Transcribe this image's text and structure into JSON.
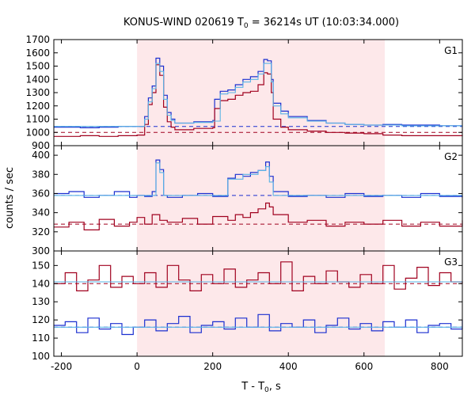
{
  "chart_data": {
    "type": "line",
    "title_main": "KONUS-WIND 020619 T",
    "title_sub": "0",
    "title_rest": " = 36214s UT (10:03:34.000)",
    "ylabel": "counts / sec",
    "xlabel_main": "T - T",
    "xlabel_sub": "0",
    "xlabel_rest": ", s",
    "xlim": [
      -220,
      860
    ],
    "xticks": [
      -200,
      0,
      200,
      400,
      600,
      800
    ],
    "shaded_interval": [
      0,
      655
    ],
    "colors": {
      "high": "#a0001e",
      "low": "#1b2fd0",
      "fit": "#5ab4e6",
      "shade": "#fde8ea"
    },
    "panels": [
      {
        "name": "G1",
        "ylim": [
          900,
          1700
        ],
        "yticks": [
          900,
          1000,
          1100,
          1200,
          1300,
          1400,
          1500,
          1600,
          1700
        ],
        "background_high": 1000,
        "background_low": 1045,
        "series": [
          {
            "role": "low",
            "x": [
              -220,
              -150,
              -100,
              -50,
              0,
              20,
              30,
              40,
              50,
              60,
              70,
              80,
              90,
              100,
              150,
              200,
              205,
              220,
              240,
              260,
              280,
              300,
              320,
              335,
              345,
              355,
              360,
              380,
              400,
              450,
              500,
              550,
              600,
              650,
              700,
              800,
              860
            ],
            "y": [
              1040,
              1035,
              1040,
              1045,
              1045,
              1120,
              1260,
              1350,
              1560,
              1500,
              1280,
              1150,
              1100,
              1070,
              1080,
              1090,
              1250,
              1310,
              1320,
              1360,
              1400,
              1420,
              1460,
              1550,
              1540,
              1400,
              1220,
              1160,
              1120,
              1090,
              1070,
              1060,
              1055,
              1060,
              1055,
              1050,
              1050
            ]
          },
          {
            "role": "high",
            "x": [
              -220,
              -150,
              -100,
              -50,
              0,
              20,
              30,
              40,
              50,
              60,
              70,
              80,
              90,
              100,
              150,
              200,
              205,
              220,
              240,
              260,
              280,
              300,
              320,
              335,
              345,
              355,
              360,
              380,
              400,
              450,
              500,
              550,
              600,
              650,
              700,
              800,
              860
            ],
            "y": [
              970,
              975,
              970,
              975,
              980,
              1060,
              1210,
              1300,
              1510,
              1430,
              1190,
              1080,
              1040,
              1020,
              1030,
              1035,
              1180,
              1240,
              1250,
              1280,
              1300,
              1310,
              1360,
              1450,
              1440,
              1300,
              1100,
              1040,
              1020,
              1010,
              1000,
              995,
              990,
              980,
              975,
              975,
              980
            ]
          },
          {
            "role": "fit",
            "x": [
              -220,
              0,
              20,
              30,
              40,
              50,
              60,
              70,
              80,
              90,
              100,
              150,
              200,
              220,
              240,
              260,
              280,
              300,
              320,
              335,
              345,
              355,
              360,
              380,
              400,
              450,
              500,
              550,
              600,
              650,
              700,
              800,
              860
            ],
            "y": [
              1045,
              1045,
              1100,
              1230,
              1330,
              1520,
              1460,
              1250,
              1130,
              1090,
              1070,
              1075,
              1085,
              1290,
              1300,
              1340,
              1380,
              1400,
              1440,
              1520,
              1520,
              1380,
              1200,
              1140,
              1110,
              1085,
              1070,
              1060,
              1055,
              1055,
              1050,
              1050,
              1050
            ]
          }
        ]
      },
      {
        "name": "G2",
        "ylim": [
          300,
          410
        ],
        "yticks": [
          300,
          320,
          340,
          360,
          380,
          400
        ],
        "background_high": 328,
        "background_low": 358,
        "series": [
          {
            "role": "low",
            "x": [
              -220,
              -180,
              -140,
              -100,
              -60,
              -20,
              0,
              20,
              40,
              50,
              60,
              70,
              80,
              120,
              160,
              200,
              240,
              260,
              280,
              300,
              320,
              340,
              350,
              360,
              400,
              450,
              500,
              550,
              600,
              650,
              700,
              750,
              800,
              860
            ],
            "y": [
              360,
              362,
              356,
              358,
              362,
              356,
              358,
              357,
              362,
              395,
              385,
              358,
              356,
              358,
              360,
              357,
              376,
              380,
              378,
              382,
              384,
              393,
              378,
              362,
              357,
              358,
              356,
              360,
              357,
              358,
              356,
              360,
              357,
              356
            ]
          },
          {
            "role": "high",
            "x": [
              -220,
              -180,
              -140,
              -100,
              -60,
              -20,
              0,
              20,
              40,
              60,
              80,
              120,
              160,
              200,
              240,
              260,
              280,
              300,
              320,
              340,
              350,
              360,
              400,
              450,
              500,
              550,
              600,
              650,
              700,
              750,
              800,
              860
            ],
            "y": [
              325,
              330,
              322,
              333,
              326,
              330,
              335,
              328,
              338,
              332,
              330,
              334,
              328,
              336,
              332,
              338,
              335,
              340,
              344,
              350,
              346,
              338,
              330,
              332,
              326,
              330,
              328,
              332,
              326,
              330,
              326,
              332
            ]
          },
          {
            "role": "fit",
            "x": [
              -220,
              0,
              40,
              50,
              60,
              70,
              80,
              200,
              240,
              280,
              320,
              340,
              350,
              360,
              400,
              860
            ],
            "y": [
              358,
              358,
              358,
              392,
              382,
              358,
              358,
              358,
              375,
              380,
              384,
              388,
              372,
              358,
              358,
              358
            ]
          }
        ]
      },
      {
        "name": "G3",
        "ylim": [
          100,
          158
        ],
        "yticks": [
          100,
          110,
          120,
          130,
          140,
          150
        ],
        "background_high": 140,
        "background_low": 116,
        "series": [
          {
            "role": "high",
            "x": [
              -220,
              -190,
              -160,
              -130,
              -100,
              -70,
              -40,
              -10,
              20,
              50,
              80,
              110,
              140,
              170,
              200,
              230,
              260,
              290,
              320,
              350,
              380,
              410,
              440,
              470,
              500,
              530,
              560,
              590,
              620,
              650,
              680,
              710,
              740,
              770,
              800,
              830,
              860
            ],
            "y": [
              140,
              146,
              136,
              142,
              150,
              138,
              144,
              140,
              146,
              138,
              150,
              142,
              136,
              145,
              140,
              148,
              138,
              142,
              146,
              140,
              152,
              136,
              144,
              140,
              147,
              141,
              138,
              145,
              140,
              150,
              137,
              143,
              149,
              139,
              146,
              141,
              140
            ]
          },
          {
            "role": "low",
            "x": [
              -220,
              -190,
              -160,
              -130,
              -100,
              -70,
              -40,
              -10,
              20,
              50,
              80,
              110,
              140,
              170,
              200,
              230,
              260,
              290,
              320,
              350,
              380,
              410,
              440,
              470,
              500,
              530,
              560,
              590,
              620,
              650,
              680,
              710,
              740,
              770,
              800,
              830,
              860
            ],
            "y": [
              117,
              119,
              113,
              121,
              115,
              118,
              112,
              116,
              120,
              114,
              118,
              122,
              113,
              117,
              119,
              115,
              121,
              116,
              123,
              114,
              118,
              116,
              120,
              113,
              117,
              121,
              115,
              118,
              114,
              119,
              116,
              120,
              113,
              117,
              118,
              115,
              120
            ]
          },
          {
            "role": "fit_low",
            "x": [
              -220,
              860
            ],
            "y": [
              116,
              116
            ]
          },
          {
            "role": "fit_high",
            "x": [
              -220,
              860
            ],
            "y": [
              141,
              141
            ]
          }
        ]
      }
    ]
  }
}
